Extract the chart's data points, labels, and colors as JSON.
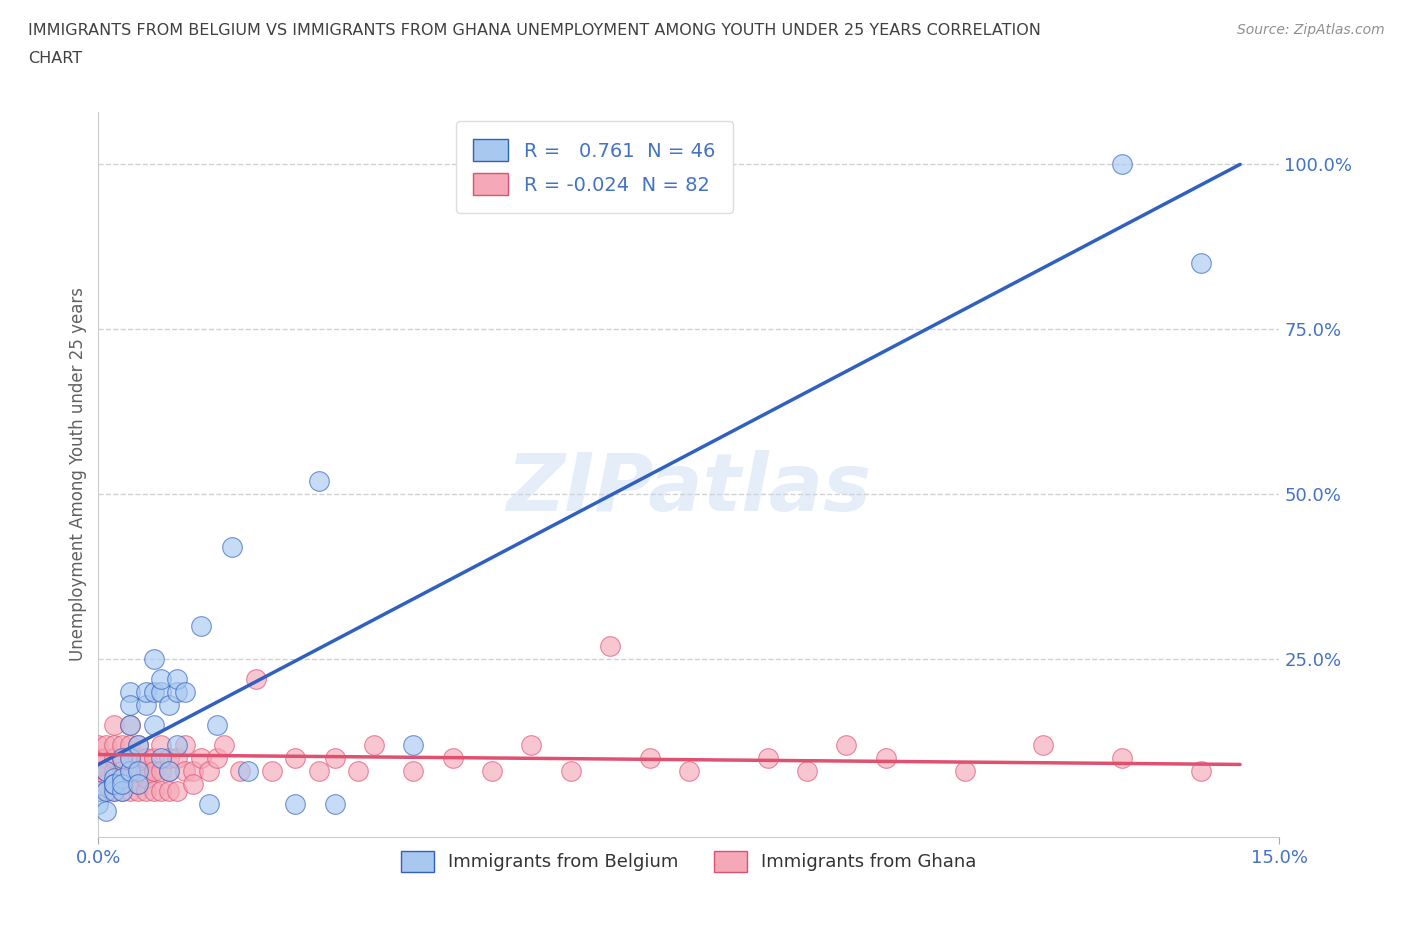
{
  "title_line1": "IMMIGRANTS FROM BELGIUM VS IMMIGRANTS FROM GHANA UNEMPLOYMENT AMONG YOUTH UNDER 25 YEARS CORRELATION",
  "title_line2": "CHART",
  "source": "Source: ZipAtlas.com",
  "ylabel": "Unemployment Among Youth under 25 years",
  "xlim": [
    0.0,
    0.15
  ],
  "ylim": [
    -0.02,
    1.08
  ],
  "yticks": [
    0.25,
    0.5,
    0.75,
    1.0
  ],
  "ytick_labels": [
    "25.0%",
    "50.0%",
    "75.0%",
    "100.0%"
  ],
  "xticks": [
    0.0,
    0.15
  ],
  "xtick_labels": [
    "0.0%",
    "15.0%"
  ],
  "belgium_color": "#a8c8f0",
  "ghana_color": "#f4a8b8",
  "belgium_line_color": "#3060c0",
  "ghana_line_color": "#e05070",
  "belgium_R": 0.761,
  "belgium_N": 46,
  "ghana_R": -0.024,
  "ghana_N": 82,
  "watermark": "ZIPatlas",
  "background_color": "#ffffff",
  "grid_color": "#cccccc",
  "title_color": "#404040",
  "legend_label_belgium": "Immigrants from Belgium",
  "legend_label_ghana": "Immigrants from Ghana",
  "bel_line_x": [
    0.0,
    0.145
  ],
  "bel_line_y": [
    0.09,
    1.0
  ],
  "gha_line_x": [
    0.0,
    0.145
  ],
  "gha_line_y": [
    0.105,
    0.09
  ],
  "belgium_scatter_x": [
    0.0,
    0.0,
    0.001,
    0.001,
    0.001,
    0.002,
    0.002,
    0.002,
    0.002,
    0.003,
    0.003,
    0.003,
    0.003,
    0.004,
    0.004,
    0.004,
    0.004,
    0.004,
    0.005,
    0.005,
    0.005,
    0.006,
    0.006,
    0.007,
    0.007,
    0.007,
    0.008,
    0.008,
    0.008,
    0.009,
    0.009,
    0.01,
    0.01,
    0.01,
    0.011,
    0.013,
    0.014,
    0.015,
    0.017,
    0.019,
    0.025,
    0.028,
    0.03,
    0.04,
    0.13,
    0.14
  ],
  "belgium_scatter_y": [
    0.05,
    0.03,
    0.08,
    0.05,
    0.02,
    0.07,
    0.05,
    0.06,
    0.06,
    0.07,
    0.05,
    0.1,
    0.06,
    0.08,
    0.1,
    0.15,
    0.2,
    0.18,
    0.12,
    0.08,
    0.06,
    0.18,
    0.2,
    0.15,
    0.2,
    0.25,
    0.1,
    0.2,
    0.22,
    0.08,
    0.18,
    0.12,
    0.2,
    0.22,
    0.2,
    0.3,
    0.03,
    0.15,
    0.42,
    0.08,
    0.03,
    0.52,
    0.03,
    0.12,
    1.0,
    0.85
  ],
  "ghana_scatter_x": [
    0.0,
    0.0,
    0.0,
    0.0,
    0.0,
    0.001,
    0.001,
    0.001,
    0.001,
    0.001,
    0.001,
    0.002,
    0.002,
    0.002,
    0.002,
    0.002,
    0.002,
    0.003,
    0.003,
    0.003,
    0.003,
    0.003,
    0.003,
    0.004,
    0.004,
    0.004,
    0.004,
    0.004,
    0.004,
    0.005,
    0.005,
    0.005,
    0.005,
    0.005,
    0.006,
    0.006,
    0.006,
    0.006,
    0.007,
    0.007,
    0.007,
    0.007,
    0.008,
    0.008,
    0.008,
    0.009,
    0.009,
    0.009,
    0.01,
    0.01,
    0.011,
    0.011,
    0.012,
    0.012,
    0.013,
    0.014,
    0.015,
    0.016,
    0.018,
    0.02,
    0.022,
    0.025,
    0.028,
    0.03,
    0.033,
    0.035,
    0.04,
    0.045,
    0.05,
    0.055,
    0.06,
    0.065,
    0.07,
    0.075,
    0.085,
    0.09,
    0.095,
    0.1,
    0.11,
    0.12,
    0.13,
    0.14
  ],
  "ghana_scatter_y": [
    0.05,
    0.08,
    0.1,
    0.12,
    0.05,
    0.08,
    0.1,
    0.12,
    0.06,
    0.05,
    0.08,
    0.05,
    0.08,
    0.1,
    0.12,
    0.15,
    0.06,
    0.05,
    0.08,
    0.1,
    0.12,
    0.06,
    0.08,
    0.05,
    0.08,
    0.1,
    0.12,
    0.15,
    0.07,
    0.05,
    0.08,
    0.1,
    0.12,
    0.06,
    0.05,
    0.08,
    0.1,
    0.07,
    0.05,
    0.08,
    0.1,
    0.08,
    0.05,
    0.08,
    0.12,
    0.05,
    0.08,
    0.1,
    0.05,
    0.1,
    0.08,
    0.12,
    0.08,
    0.06,
    0.1,
    0.08,
    0.1,
    0.12,
    0.08,
    0.22,
    0.08,
    0.1,
    0.08,
    0.1,
    0.08,
    0.12,
    0.08,
    0.1,
    0.08,
    0.12,
    0.08,
    0.27,
    0.1,
    0.08,
    0.1,
    0.08,
    0.12,
    0.1,
    0.08,
    0.12,
    0.1,
    0.08
  ]
}
